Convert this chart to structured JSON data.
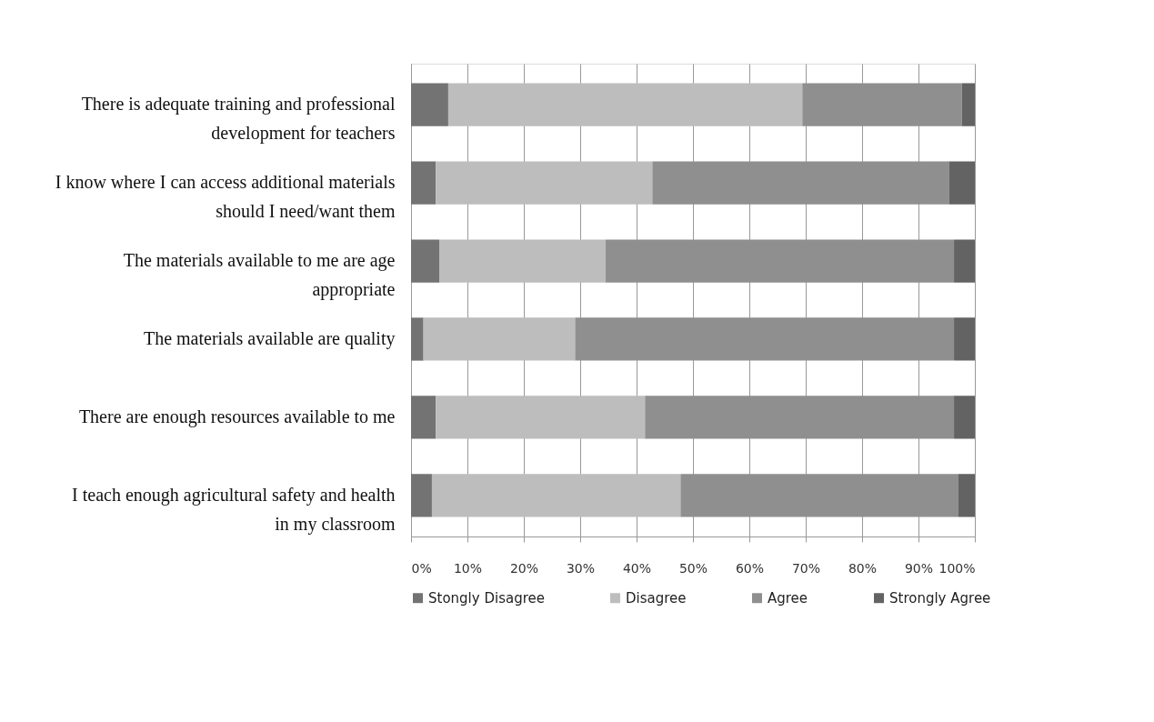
{
  "chart_data": {
    "type": "bar",
    "orientation": "horizontal",
    "stacked": true,
    "categories": [
      "There is adequate training and professional development for teachers",
      "I know where I can access additional materials should I need/want them",
      "The materials available to me are age appropriate",
      "The materials available are quality",
      "There are enough resources available to me",
      "I teach enough agricultural safety and health in my classroom"
    ],
    "series": [
      {
        "name": "Stongly Disagree",
        "color": "#737373",
        "values": [
          6.6,
          4.4,
          5.0,
          2.2,
          4.4,
          3.7
        ]
      },
      {
        "name": "Disagree",
        "color": "#bdbdbd",
        "values": [
          62.8,
          38.4,
          29.5,
          26.9,
          37.1,
          44.1
        ]
      },
      {
        "name": "Agree",
        "color": "#8f8f8f",
        "values": [
          28.3,
          52.6,
          61.8,
          67.2,
          54.8,
          49.2
        ]
      },
      {
        "name": "Strongly Agree",
        "color": "#636363",
        "values": [
          2.3,
          4.6,
          3.7,
          3.7,
          3.7,
          3.0
        ]
      }
    ],
    "xlim": [
      0,
      100
    ],
    "xticks": [
      {
        "value": 0,
        "label": "0%"
      },
      {
        "value": 10,
        "label": "10%"
      },
      {
        "value": 20,
        "label": "20%"
      },
      {
        "value": 30,
        "label": "30%"
      },
      {
        "value": 40,
        "label": "40%"
      },
      {
        "value": 50,
        "label": "50%"
      },
      {
        "value": 60,
        "label": "60%"
      },
      {
        "value": 70,
        "label": "70%"
      },
      {
        "value": 80,
        "label": "80%"
      },
      {
        "value": 90,
        "label": "90%"
      },
      {
        "value": 100,
        "label": "100%"
      }
    ],
    "grid": "x",
    "legend": "bottom"
  }
}
